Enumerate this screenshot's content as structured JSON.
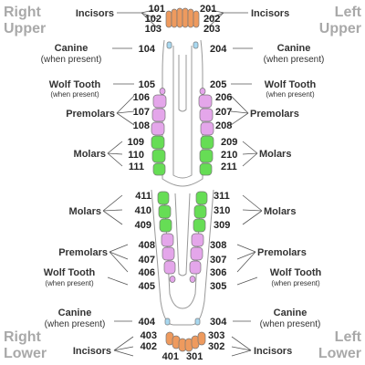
{
  "colors": {
    "incisor": "#ee9a5e",
    "canine": "#a8d8f0",
    "premolar": "#e4a6ea",
    "molar": "#66dd55",
    "wolf": "#e4a6ea"
  },
  "corners": {
    "ru1": "Right",
    "ru2": "Upper",
    "lu1": "Left",
    "lu2": "Upper",
    "rl1": "Right",
    "rl2": "Lower",
    "ll1": "Left",
    "ll2": "Lower"
  },
  "labels": {
    "incisors": "Incisors",
    "canine": "Canine",
    "when_present": "(when present)",
    "wolf": "Wolf Tooth",
    "premolars": "Premolars",
    "molars": "Molars"
  },
  "teeth": {
    "t101": "101",
    "t102": "102",
    "t103": "103",
    "t104": "104",
    "t105": "105",
    "t106": "106",
    "t107": "107",
    "t108": "108",
    "t109": "109",
    "t110": "110",
    "t111": "111",
    "t201": "201",
    "t202": "202",
    "t203": "203",
    "t204": "204",
    "t205": "205",
    "t206": "206",
    "t207": "207",
    "t208": "208",
    "t209": "209",
    "t210": "210",
    "t211": "211",
    "t411": "411",
    "t410": "410",
    "t409": "409",
    "t408": "408",
    "t407": "407",
    "t406": "406",
    "t405": "405",
    "t404": "404",
    "t403": "403",
    "t402": "402",
    "t401": "401",
    "t311": "311",
    "t310": "310",
    "t309": "309",
    "t308": "308",
    "t307": "307",
    "t306": "306",
    "t305": "305",
    "t304": "304",
    "t303": "303",
    "t302": "302",
    "t301": "301"
  }
}
